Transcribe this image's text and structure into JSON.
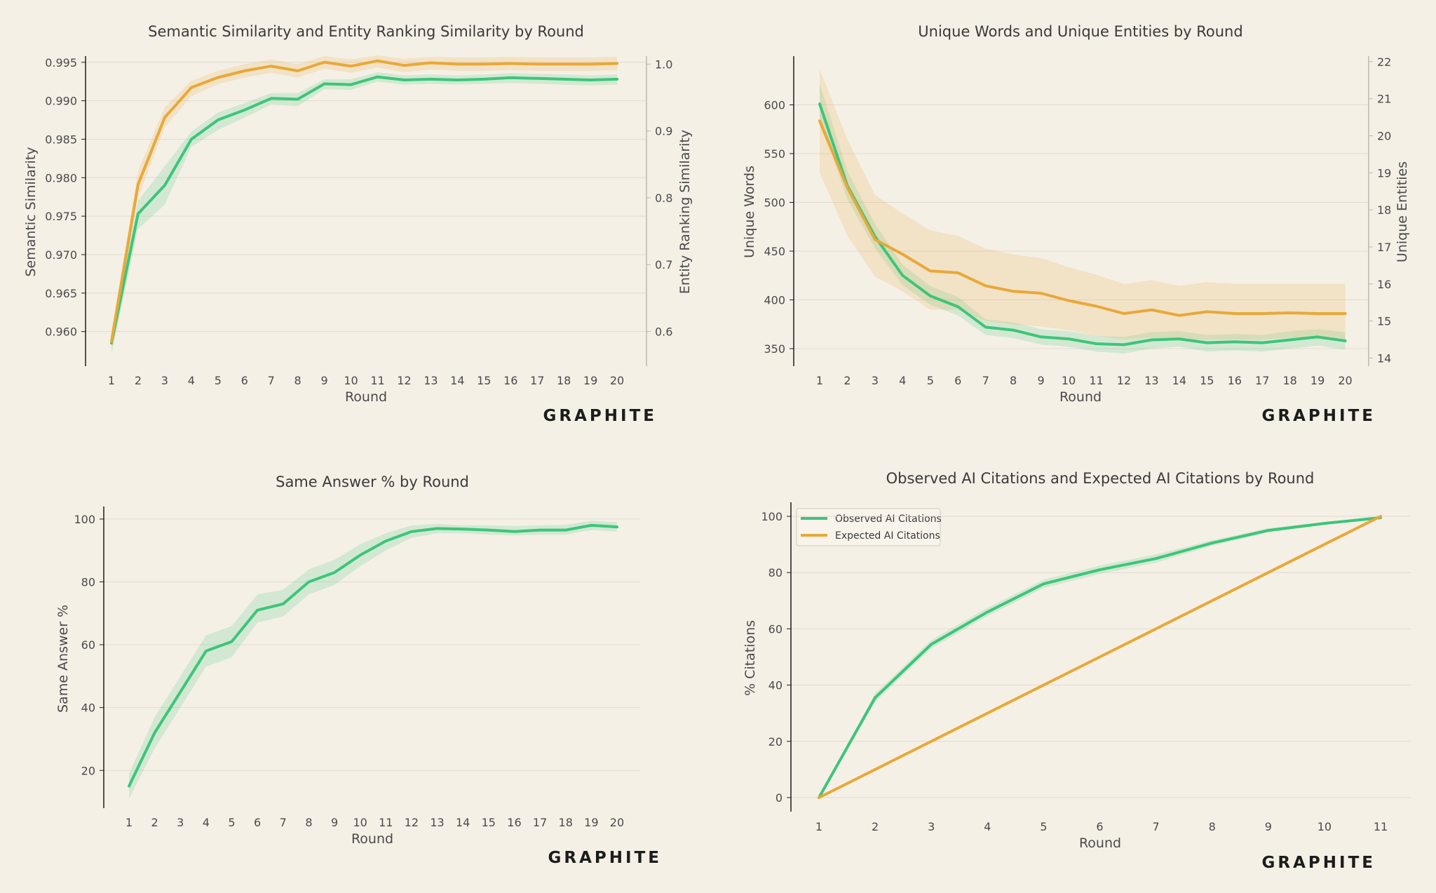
{
  "colors": {
    "green": "#3dc57a",
    "orange": "#e8a838",
    "background": "#f5f0e6",
    "grid": "#e0dbd0",
    "axis": "#1c1c1c"
  },
  "chart_data": [
    {
      "id": "semantic",
      "type": "line",
      "title": "Semantic Similarity and Entity Ranking Similarity by Round",
      "xlabel": "Round",
      "categories": [
        "1",
        "2",
        "3",
        "4",
        "5",
        "6",
        "7",
        "8",
        "9",
        "10",
        "11",
        "12",
        "13",
        "14",
        "15",
        "16",
        "17",
        "18",
        "19",
        "20"
      ],
      "y_left": {
        "label": "Semantic Similarity",
        "lim": [
          0.9555,
          0.9958
        ],
        "ticks": [
          "0.960",
          "0.965",
          "0.970",
          "0.975",
          "0.980",
          "0.985",
          "0.990",
          "0.995"
        ],
        "color": "#7fd3a0"
      },
      "y_right": {
        "label": "Entity Ranking Similarity",
        "lim": [
          0.548,
          1.012
        ],
        "ticks": [
          "0.6",
          "0.7",
          "0.8",
          "0.9",
          "1.0"
        ],
        "color": "#f0c070"
      },
      "grid": true,
      "legend": "none",
      "brand": "GRAPHITE",
      "series": [
        {
          "name": "Semantic Similarity",
          "axis": "left",
          "color": "#3dc57a",
          "values": [
            0.9585,
            0.9753,
            0.979,
            0.985,
            0.9875,
            0.9888,
            0.9903,
            0.9902,
            0.9922,
            0.9921,
            0.9931,
            0.9927,
            0.9928,
            0.9927,
            0.9928,
            0.993,
            0.9929,
            0.9928,
            0.9927,
            0.9928
          ],
          "upper": [
            0.9595,
            0.977,
            0.9815,
            0.986,
            0.9885,
            0.9897,
            0.991,
            0.991,
            0.9928,
            0.9928,
            0.9937,
            0.9933,
            0.9934,
            0.9933,
            0.9934,
            0.9936,
            0.9935,
            0.9934,
            0.9933,
            0.9934
          ],
          "lower": [
            0.957,
            0.9733,
            0.9765,
            0.984,
            0.9862,
            0.9878,
            0.9895,
            0.9893,
            0.9915,
            0.9914,
            0.9925,
            0.9921,
            0.9922,
            0.9921,
            0.9922,
            0.9923,
            0.9922,
            0.9921,
            0.992,
            0.9921
          ]
        },
        {
          "name": "Entity Ranking Similarity",
          "axis": "right",
          "color": "#e8a838",
          "values": [
            0.585,
            0.82,
            0.92,
            0.965,
            0.98,
            0.99,
            0.997,
            0.99,
            1.003,
            0.997,
            1.005,
            0.998,
            1.002,
            1.0,
            1.0,
            1.001,
            1.0,
            1.0,
            1.0,
            1.001
          ],
          "upper": [
            0.6,
            0.84,
            0.935,
            0.975,
            0.99,
            1.0,
            1.007,
            1.0,
            1.012,
            1.007,
            1.013,
            1.008,
            1.011,
            1.01,
            1.01,
            1.011,
            1.01,
            1.01,
            1.01,
            1.011
          ],
          "lower": [
            0.572,
            0.8,
            0.905,
            0.952,
            0.97,
            0.98,
            0.987,
            0.98,
            0.993,
            0.987,
            0.995,
            0.988,
            0.992,
            0.99,
            0.99,
            0.991,
            0.99,
            0.99,
            0.99,
            0.991
          ]
        }
      ]
    },
    {
      "id": "unique",
      "type": "line",
      "title": "Unique Words and Unique Entities by Round",
      "xlabel": "Round",
      "categories": [
        "1",
        "2",
        "3",
        "4",
        "5",
        "6",
        "7",
        "8",
        "9",
        "10",
        "11",
        "12",
        "13",
        "14",
        "15",
        "16",
        "17",
        "18",
        "19",
        "20"
      ],
      "y_left": {
        "label": "Unique Words",
        "lim": [
          332,
          650
        ],
        "ticks": [
          "350",
          "400",
          "450",
          "500",
          "550",
          "600"
        ],
        "color": "#7fd3a0"
      },
      "y_right": {
        "label": "Unique Entities",
        "lim": [
          13.78,
          22.15
        ],
        "ticks": [
          "14",
          "15",
          "16",
          "17",
          "18",
          "19",
          "20",
          "21",
          "22"
        ],
        "color": "#f0c070"
      },
      "grid": true,
      "legend": "none",
      "brand": "GRAPHITE",
      "series": [
        {
          "name": "Unique Words",
          "axis": "left",
          "color": "#3dc57a",
          "values": [
            601,
            517,
            465,
            425,
            404,
            393,
            372,
            369,
            362,
            360,
            355,
            354,
            359,
            360,
            356,
            357,
            356,
            359,
            362,
            358
          ],
          "upper": [
            622,
            532,
            478,
            436,
            414,
            403,
            380,
            377,
            370,
            368,
            363,
            362,
            367,
            368,
            364,
            365,
            364,
            368,
            370,
            367
          ],
          "lower": [
            586,
            503,
            453,
            415,
            395,
            384,
            364,
            361,
            354,
            352,
            347,
            345,
            350,
            352,
            347,
            348,
            347,
            350,
            353,
            349
          ]
        },
        {
          "name": "Unique Entities",
          "axis": "right",
          "color": "#e8a838",
          "values": [
            20.4,
            18.6,
            17.2,
            16.8,
            16.35,
            16.3,
            15.95,
            15.8,
            15.75,
            15.55,
            15.4,
            15.2,
            15.3,
            15.15,
            15.25,
            15.2,
            15.2,
            15.22,
            15.2,
            15.2
          ],
          "upper": [
            21.8,
            19.9,
            18.4,
            17.9,
            17.45,
            17.3,
            16.95,
            16.8,
            16.7,
            16.45,
            16.25,
            16.0,
            16.1,
            15.95,
            16.05,
            16.0,
            16.0,
            16.0,
            16.0,
            16.0
          ],
          "lower": [
            19.0,
            17.3,
            16.2,
            15.8,
            15.3,
            15.3,
            15.0,
            14.9,
            14.85,
            14.75,
            14.6,
            14.5,
            14.55,
            14.5,
            14.5,
            14.5,
            14.5,
            14.55,
            14.5,
            14.5
          ]
        }
      ]
    },
    {
      "id": "same",
      "type": "line",
      "title": "Same Answer % by Round",
      "xlabel": "Round",
      "categories": [
        "1",
        "2",
        "3",
        "4",
        "5",
        "6",
        "7",
        "8",
        "9",
        "10",
        "11",
        "12",
        "13",
        "14",
        "15",
        "16",
        "17",
        "18",
        "19",
        "20"
      ],
      "y_left": {
        "label": "Same Answer %",
        "lim": [
          8,
          104
        ],
        "ticks": [
          "20",
          "40",
          "60",
          "80",
          "100"
        ],
        "color": "#4a4a4a"
      },
      "grid": true,
      "legend": "none",
      "brand": "GRAPHITE",
      "series": [
        {
          "name": "Same Answer %",
          "axis": "left",
          "color": "#3dc57a",
          "values": [
            15,
            32,
            45,
            58,
            61,
            71,
            73,
            80,
            83,
            88.5,
            93,
            96,
            97,
            96.8,
            96.5,
            96,
            96.5,
            96.5,
            98,
            97.5
          ],
          "upper": [
            19,
            37,
            50,
            63,
            66,
            76,
            77.5,
            84,
            87,
            92,
            95.5,
            98,
            98.5,
            98,
            98,
            97.8,
            98,
            98.2,
            99.5,
            99
          ],
          "lower": [
            11,
            27,
            40,
            53,
            56,
            67,
            69,
            76,
            79,
            85,
            90,
            94,
            95.5,
            95.5,
            95,
            94.8,
            95,
            95,
            96.5,
            96
          ]
        }
      ]
    },
    {
      "id": "citations",
      "type": "line",
      "title": "Observed AI Citations and Expected AI Citations by Round",
      "xlabel": "Round",
      "categories": [
        "1",
        "2",
        "3",
        "4",
        "5",
        "6",
        "7",
        "8",
        "9",
        "10",
        "11"
      ],
      "y_left": {
        "label": "% Citations",
        "lim": [
          -5,
          105
        ],
        "ticks": [
          "0",
          "20",
          "40",
          "60",
          "80",
          "100"
        ],
        "color": "#4a4a4a"
      },
      "grid": true,
      "legend": "top-left",
      "brand": "GRAPHITE",
      "series": [
        {
          "name": "Observed AI Citations",
          "axis": "left",
          "color": "#3dc57a",
          "values": [
            0,
            35.5,
            54.5,
            66,
            76,
            81,
            85,
            90.5,
            95,
            97.5,
            99.5
          ],
          "upper": [
            0.5,
            37,
            56,
            67.5,
            77.5,
            82.5,
            86.5,
            91.5,
            95.8,
            98,
            100
          ],
          "lower": [
            -0.5,
            34,
            53,
            64.5,
            74.5,
            79.5,
            83.5,
            89.5,
            94.2,
            97,
            99
          ]
        },
        {
          "name": "Expected AI Citations",
          "axis": "left",
          "color": "#e8a838",
          "values": [
            0,
            10,
            20,
            30,
            40,
            50,
            60,
            70,
            80,
            90,
            100
          ]
        }
      ]
    }
  ]
}
